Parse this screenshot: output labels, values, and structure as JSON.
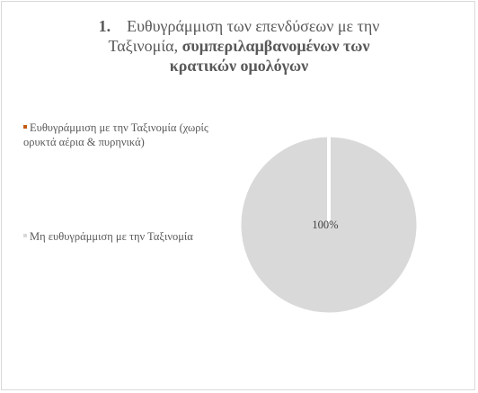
{
  "title": {
    "number": "1.",
    "line1": "Ευθυγράμμιση των επενδύσεων με την",
    "line2_normal": "Ταξινομία, ",
    "line2_bold": "συμπεριλαμβανομένων των",
    "line3_bold": "κρατικών ομολόγων"
  },
  "colors": {
    "aligned": "#c55a11",
    "not_aligned": "#d9d9d9",
    "text": "#595959"
  },
  "chart_data": {
    "type": "pie",
    "title": "1. Ευθυγράμμιση των επενδύσεων με την Ταξινομία, συμπεριλαμβανομένων των κρατικών ομολόγων",
    "categories": [
      "Ευθυγράμμιση με την Ταξινομία (χωρίς ορυκτά αέρια & πυρηνικά)",
      "Μη ευθυγράμμιση με την Ταξινομία"
    ],
    "values": [
      0,
      100
    ],
    "data_labels": [
      "",
      "100%"
    ],
    "legend": {
      "placement": "left",
      "entries": [
        {
          "label": "Ευθυγράμμιση με την Ταξινομία (χωρίς ορυκτά αέρια & πυρηνικά)",
          "color": "#c55a11"
        },
        {
          "label": "Μη ευθυγράμμιση με την Ταξινομία",
          "color": "#d9d9d9"
        }
      ]
    }
  }
}
